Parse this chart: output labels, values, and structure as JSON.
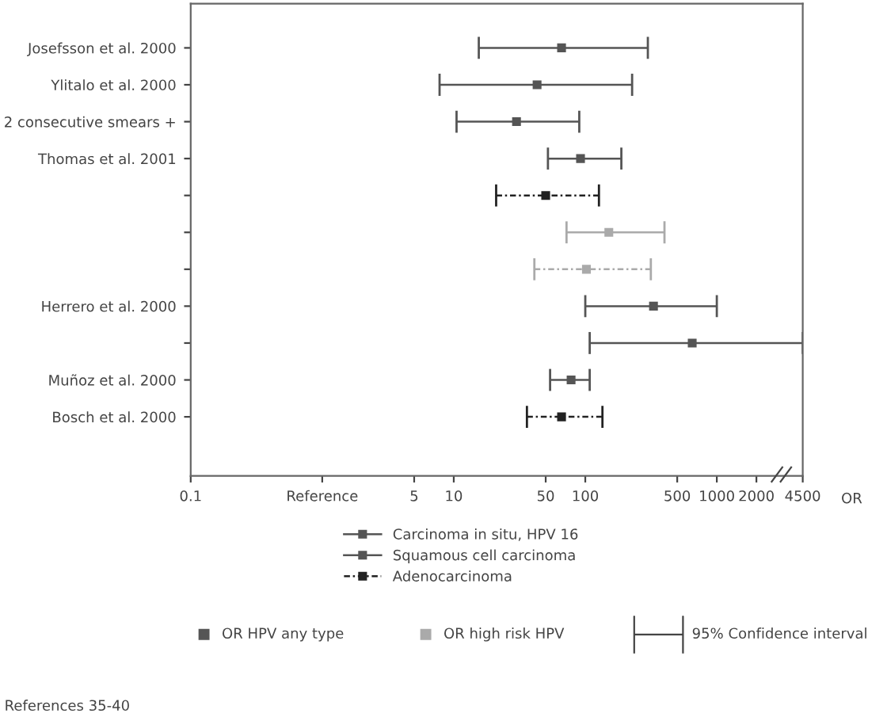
{
  "chart_data": {
    "type": "scatter",
    "orientation": "horizontal",
    "log": "x",
    "grid": false,
    "legend": "bottom",
    "marker": "square",
    "categories": [
      "Josefsson et al. 2000",
      "Ylitalo et al. 2000",
      "2 consecutive smears +",
      "Thomas et al. 2001",
      null,
      null,
      null,
      "Herrero et al. 2000",
      null,
      "Muñoz et al. 2000",
      "Bosch et al. 2000"
    ],
    "xlim": [
      0.1,
      4500
    ],
    "xticks": [
      0.1,
      {
        "value": 1,
        "label": "Reference"
      },
      5,
      10,
      50,
      100,
      500,
      1000,
      2000,
      4500
    ],
    "xlabel": "OR",
    "series": [
      {
        "name": "Carcinoma in situ, HPV 16",
        "color": "#555555",
        "line_style": "solid",
        "values": [
          66,
          43,
          30,
          null,
          null,
          null,
          null,
          330,
          null,
          null,
          null
        ],
        "errors": [
          [
            15.5,
            299
          ],
          [
            7.8,
            227
          ],
          [
            10.5,
            90
          ],
          null,
          null,
          null,
          null,
          [
            100,
            1000
          ],
          null,
          null,
          null
        ]
      },
      {
        "name": "Squamous cell carcinoma",
        "color": "#555555",
        "line_style": "solid",
        "values": [
          null,
          null,
          null,
          92,
          null,
          null,
          null,
          null,
          650,
          78,
          null
        ],
        "errors": [
          null,
          null,
          null,
          [
            52,
            188
          ],
          null,
          null,
          null,
          null,
          [
            108,
            4500
          ],
          [
            54,
            108
          ],
          null
        ]
      },
      {
        "name": "Adenocarcinoma",
        "color": "#222222",
        "line_style": "dashed",
        "values": [
          null,
          null,
          null,
          null,
          50,
          null,
          null,
          null,
          null,
          null,
          66
        ],
        "errors": [
          null,
          null,
          null,
          null,
          [
            21,
            127
          ],
          null,
          null,
          null,
          null,
          null,
          [
            36,
            135
          ]
        ]
      },
      {
        "color": "#aaaaaa",
        "line_style": "solid",
        "values": [
          null,
          null,
          null,
          null,
          null,
          151,
          null,
          null,
          null,
          null,
          null
        ],
        "errors": [
          null,
          null,
          null,
          null,
          null,
          [
            72,
            400
          ],
          null,
          null,
          null,
          null,
          null
        ]
      },
      {
        "color": "#aaaaaa",
        "line_style": "dashed",
        "values": [
          null,
          null,
          null,
          null,
          null,
          null,
          102,
          null,
          null,
          null,
          null
        ],
        "errors": [
          null,
          null,
          null,
          null,
          null,
          null,
          [
            41,
            315
          ],
          null,
          null,
          null,
          null
        ]
      }
    ],
    "annotations": [
      "OR HPV any type",
      "OR high risk HPV",
      "95% Confidence interval",
      "References 35-40"
    ]
  }
}
